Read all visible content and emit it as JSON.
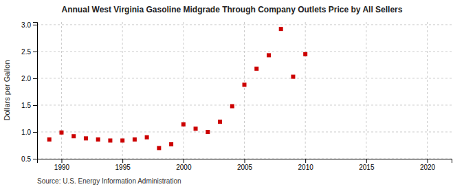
{
  "chart_data": {
    "type": "scatter",
    "title": "Annual West Virginia Gasoline Midgrade Through Company Outlets Price by All Sellers",
    "ylabel": "Dollars per Gallon",
    "annotations": [
      "Source: U.S. Energy Information Administration"
    ],
    "color": "#cc0000",
    "marker": "square",
    "grid": true,
    "xlim": [
      1988.0,
      2022.0
    ],
    "ylim": [
      0.5,
      3.05
    ],
    "xticks": [
      1990,
      1995,
      2000,
      2005,
      2010,
      2015,
      2020
    ],
    "yticks": [
      0.5,
      {
        "value": 1.0,
        "label": "1.0"
      },
      1.5,
      {
        "value": 2.0,
        "label": "2.0"
      },
      2.5,
      {
        "value": 3.0,
        "label": "3.0"
      }
    ],
    "x": [
      1989,
      1990,
      1991,
      1992,
      1993,
      1994,
      1995,
      1996,
      1997,
      1998,
      1999,
      2000,
      2001,
      2002,
      2003,
      2004,
      2005,
      2006,
      2007,
      2008,
      2009,
      2010
    ],
    "values": [
      0.86,
      0.99,
      0.92,
      0.88,
      0.86,
      0.84,
      0.84,
      0.86,
      0.9,
      0.7,
      0.77,
      1.14,
      1.06,
      1.0,
      1.19,
      1.48,
      1.88,
      2.18,
      2.43,
      2.92,
      2.03,
      2.45
    ]
  }
}
